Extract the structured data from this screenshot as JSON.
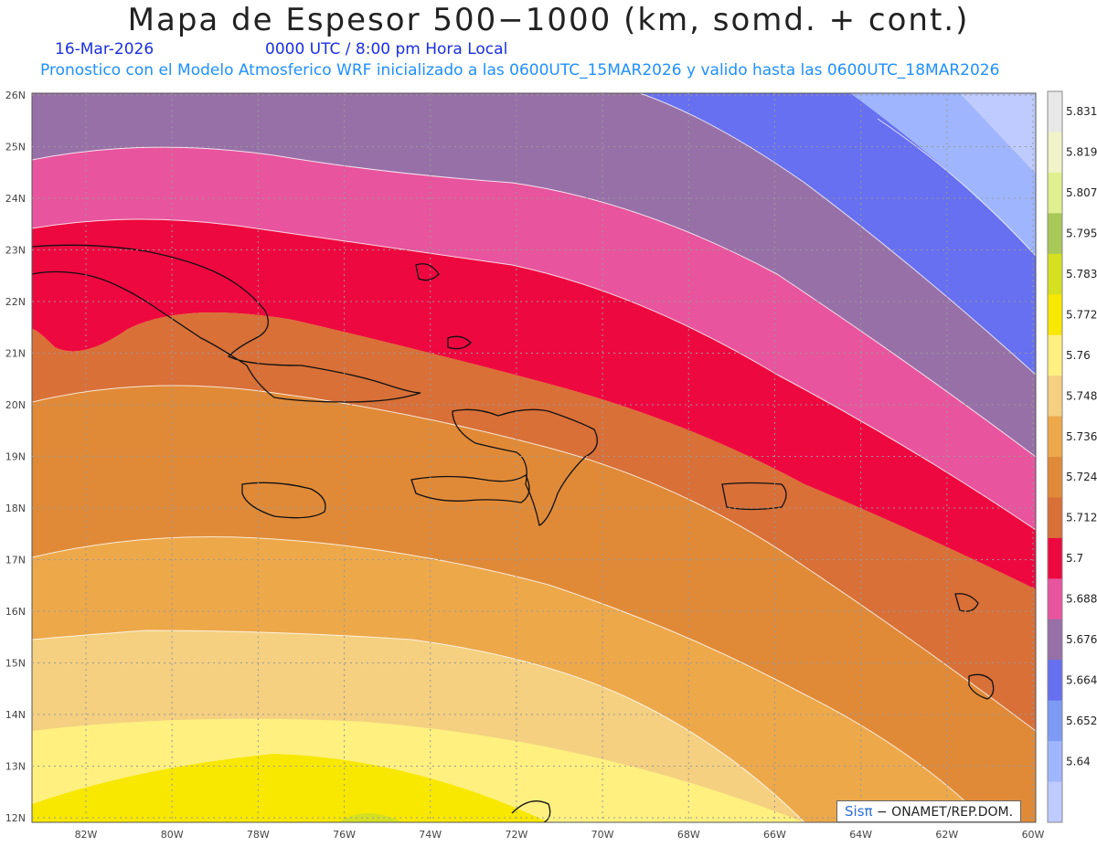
{
  "title": "Mapa de Espesor 500−1000 (km, somd. + cont.)",
  "date": "16-Mar-2026",
  "time": "0000 UTC / 8:00 pm Hora Local",
  "description": "Pronostico con el Modelo Atmosferico WRF inicializado a las 0600UTC_15MAR2026 y valido hasta las  0600UTC_18MAR2026",
  "map": {
    "lat_labels": [
      "26N",
      "25N",
      "24N",
      "23N",
      "22N",
      "21N",
      "20N",
      "19N",
      "18N",
      "17N",
      "16N",
      "15N",
      "14N",
      "13N",
      "12N"
    ],
    "lon_labels": [
      "82W",
      "80W",
      "78W",
      "76W",
      "74W",
      "72W",
      "70W",
      "68W",
      "66W",
      "64W",
      "62W",
      "60W"
    ]
  },
  "colorbar": {
    "labels": [
      "5.831",
      "5.819",
      "5.807",
      "5.795",
      "5.783",
      "5.772",
      "5.76",
      "5.748",
      "5.736",
      "5.724",
      "5.712",
      "5.7",
      "5.688",
      "5.676",
      "5.664",
      "5.652",
      "5.64"
    ],
    "colors": [
      "#e8e8e8",
      "#f0f4c8",
      "#e0f090",
      "#a8c858",
      "#d4e020",
      "#f8e800",
      "#fff080",
      "#f4d080",
      "#eda84a",
      "#e08a38",
      "#d87038",
      "#ee0840",
      "#e8549e",
      "#9870a8",
      "#6670f0",
      "#7d9af5",
      "#9fb6ff",
      "#bfcaff"
    ]
  },
  "credit": {
    "brand": "Sisπ",
    "text": " − ONAMET/REP.DOM."
  }
}
